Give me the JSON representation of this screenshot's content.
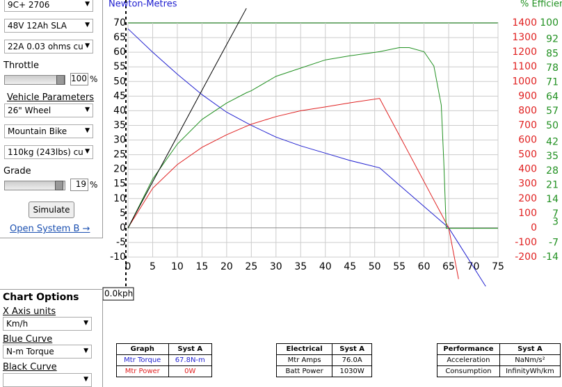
{
  "controls": {
    "motor": "9C+ 2706",
    "battery": "48V 12Ah SLA",
    "controller": "22A 0.03 ohms cu",
    "throttle_label": "Throttle",
    "throttle": 100,
    "throttle_unit": "%",
    "vehicle_heading": "Vehicle Parameters",
    "wheel": "26\"  Wheel",
    "bike": "Mountain Bike",
    "weight": "110kg (243lbs) cu",
    "grade_label": "Grade",
    "grade": 19,
    "grade_unit": "%",
    "simulate": "Simulate",
    "open_b": "Open System B →"
  },
  "chart_options": {
    "title": "Chart Options",
    "x_axis_label": "X Axis units",
    "x_axis": "Km/h",
    "blue_label": "Blue Curve",
    "blue": "N-m Torque",
    "black_label": "Black Curve"
  },
  "chart_data": {
    "type": "line",
    "ylabel": "Newton-Metres",
    "y3label": "% Efficiency",
    "marker_label": "0.0kph",
    "x": [
      0,
      5,
      10,
      15,
      20,
      24,
      25,
      30,
      35,
      40,
      45,
      51,
      55,
      57,
      60,
      62,
      63.5,
      64,
      64.5,
      65,
      67,
      72.5,
      75
    ],
    "xlim": [
      0,
      75
    ],
    "xticks": [
      0,
      5,
      10,
      15,
      20,
      25,
      30,
      35,
      40,
      45,
      50,
      55,
      60,
      65,
      70,
      75
    ],
    "ylim": [
      -10,
      70
    ],
    "yticks": [
      -10,
      -5,
      0,
      5,
      10,
      15,
      20,
      25,
      30,
      35,
      40,
      45,
      50,
      55,
      60,
      65,
      70
    ],
    "y2lim": [
      -200,
      1400
    ],
    "y2ticks": [
      -200,
      -100,
      0,
      100,
      200,
      300,
      400,
      500,
      600,
      700,
      800,
      900,
      1000,
      1100,
      1200,
      1300,
      1400
    ],
    "y3lim": [
      -14,
      100
    ],
    "y3ticks": [
      -14,
      -7,
      3,
      7,
      14,
      21,
      28,
      35,
      42,
      50,
      57,
      64,
      71,
      78,
      85,
      92,
      100
    ],
    "grid": true,
    "series": [
      {
        "color": "#2020d0",
        "values": [
          68,
          60,
          52.5,
          45.5,
          39.5,
          35.9,
          35,
          31,
          28,
          25.5,
          23,
          20.5,
          14.6,
          11.7,
          7.3,
          4.4,
          2.2,
          1.5,
          0.7,
          0,
          -5.3,
          -20,
          null
        ]
      },
      {
        "color": "#e02020",
        "axis": "y2",
        "values": [
          0,
          270,
          432,
          550,
          636,
          694,
          708,
          760,
          800,
          826,
          854,
          884,
          632,
          506,
          316,
          189,
          95,
          63,
          32,
          0,
          -350,
          null,
          null
        ]
      },
      {
        "color": "#209020",
        "axis": "y3",
        "values": [
          0,
          24,
          41,
          53,
          61,
          66,
          67,
          74,
          78,
          82,
          84,
          86,
          88,
          88,
          86,
          79,
          60,
          33,
          0,
          0,
          0,
          0,
          0
        ]
      },
      {
        "color": "#000000",
        "values": [
          0,
          15.7,
          31.3,
          47,
          62.6,
          75,
          null,
          null,
          null,
          null,
          null,
          null,
          null,
          null,
          null,
          null,
          null,
          null,
          null,
          null,
          null,
          null,
          null
        ]
      }
    ]
  },
  "tables": [
    {
      "header": [
        "Graph",
        "Syst A"
      ],
      "rows": [
        [
          "Mtr Torque",
          "67.8N-m"
        ],
        [
          "Mtr Power",
          "0W"
        ]
      ]
    },
    {
      "header": [
        "Electrical",
        "Syst A"
      ],
      "rows": [
        [
          "Mtr Amps",
          "76.0A"
        ],
        [
          "Batt Power",
          "1030W"
        ]
      ]
    },
    {
      "header": [
        "Performance",
        "Syst A"
      ],
      "rows": [
        [
          "Acceleration",
          "NaNm/s²"
        ],
        [
          "Consumption",
          "InfinityWh/km"
        ]
      ]
    }
  ]
}
